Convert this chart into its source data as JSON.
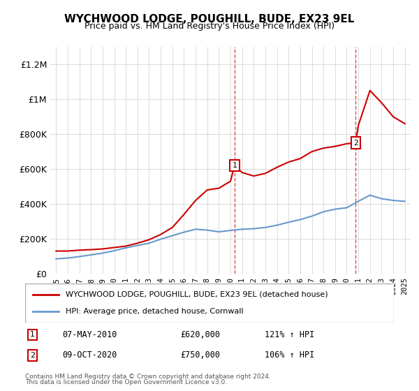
{
  "title": "WYCHWOOD LODGE, POUGHILL, BUDE, EX23 9EL",
  "subtitle": "Price paid vs. HM Land Registry's House Price Index (HPI)",
  "legend_line1": "WYCHWOOD LODGE, POUGHILL, BUDE, EX23 9EL (detached house)",
  "legend_line2": "HPI: Average price, detached house, Cornwall",
  "footer1": "Contains HM Land Registry data © Crown copyright and database right 2024.",
  "footer2": "This data is licensed under the Open Government Licence v3.0.",
  "sale1_label": "1",
  "sale1_date": "07-MAY-2010",
  "sale1_price": "£620,000",
  "sale1_hpi": "121% ↑ HPI",
  "sale2_label": "2",
  "sale2_date": "09-OCT-2020",
  "sale2_price": "£750,000",
  "sale2_hpi": "106% ↑ HPI",
  "red_color": "#cc0000",
  "blue_color": "#6699cc",
  "dashed_color": "#cc0000",
  "marker_border_color": "#cc0000",
  "ylim": [
    0,
    1300000
  ],
  "yticks": [
    0,
    200000,
    400000,
    600000,
    800000,
    1000000,
    1200000
  ],
  "ytick_labels": [
    "£0",
    "£200K",
    "£400K",
    "£600K",
    "£800K",
    "£1M",
    "£1.2M"
  ],
  "sale1_year": 2010.35,
  "sale2_year": 2020.77,
  "red_x": [
    1995,
    1996,
    1997,
    1998,
    1999,
    2000,
    2001,
    2002,
    2003,
    2004,
    2005,
    2006,
    2007,
    2008,
    2009,
    2010,
    2010.35,
    2011,
    2012,
    2013,
    2014,
    2015,
    2016,
    2017,
    2018,
    2019,
    2020,
    2020.77,
    2021,
    2022,
    2023,
    2024,
    2025
  ],
  "red_y": [
    130000,
    130000,
    135000,
    138000,
    142000,
    150000,
    158000,
    175000,
    195000,
    225000,
    265000,
    340000,
    420000,
    480000,
    490000,
    530000,
    620000,
    580000,
    560000,
    575000,
    610000,
    640000,
    660000,
    700000,
    720000,
    730000,
    745000,
    750000,
    850000,
    1050000,
    980000,
    900000,
    860000
  ],
  "blue_x": [
    1995,
    1996,
    1997,
    1998,
    1999,
    2000,
    2001,
    2002,
    2003,
    2004,
    2005,
    2006,
    2007,
    2008,
    2009,
    2010,
    2011,
    2012,
    2013,
    2014,
    2015,
    2016,
    2017,
    2018,
    2019,
    2020,
    2021,
    2022,
    2023,
    2024,
    2025
  ],
  "blue_y": [
    85000,
    90000,
    98000,
    108000,
    118000,
    132000,
    148000,
    162000,
    175000,
    198000,
    218000,
    238000,
    255000,
    250000,
    240000,
    248000,
    255000,
    258000,
    265000,
    278000,
    295000,
    310000,
    330000,
    355000,
    370000,
    378000,
    415000,
    450000,
    430000,
    420000,
    415000
  ]
}
